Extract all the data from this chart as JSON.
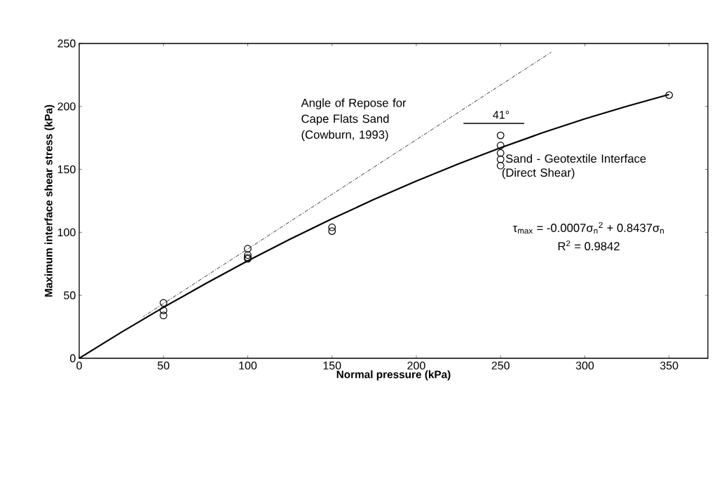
{
  "chart_data": {
    "type": "scatter",
    "xlabel": "Normal pressure (kPa)",
    "ylabel": "Maximum interface shear stress (kPa)",
    "xlim": [
      0,
      373
    ],
    "ylim": [
      0,
      250
    ],
    "xticks": [
      0,
      50,
      100,
      150,
      200,
      250,
      300,
      350
    ],
    "yticks": [
      0,
      50,
      100,
      150,
      200,
      250
    ],
    "grid": false,
    "legend": false,
    "series": [
      {
        "name": "Sand - Geotextile Interface (Direct Shear)",
        "type": "scatter",
        "marker": "circle",
        "color": "#000000",
        "x": [
          50,
          50,
          50,
          100,
          100,
          100,
          100,
          150,
          150,
          250,
          250,
          250,
          250,
          250,
          350
        ],
        "values": [
          44,
          38,
          34,
          87,
          82,
          80,
          79,
          104,
          101,
          177,
          169,
          163,
          158,
          153,
          209
        ]
      },
      {
        "type": "line",
        "marker": "none",
        "line_style": "solid",
        "color": "#000000",
        "x": [
          0,
          25,
          50,
          75,
          100,
          125,
          150,
          175,
          200,
          225,
          250,
          275,
          300,
          325,
          350
        ],
        "values": [
          0,
          20.7,
          40.4,
          59.3,
          77.4,
          94.5,
          110.8,
          126.2,
          140.7,
          154.4,
          167.2,
          179.1,
          190.1,
          200.2,
          209.5
        ]
      },
      {
        "type": "line",
        "marker": "none",
        "line_style": "solid",
        "color": "#000000",
        "x": [
          228,
          264
        ],
        "values": [
          186.5,
          186.5
        ]
      },
      {
        "name": "Angle of Repose for Cape Flats Sand (Cowburn, 1993)",
        "type": "line",
        "marker": "none",
        "line_style": "dashed",
        "color": "#000000",
        "x": [
          38,
          280
        ],
        "values": [
          33,
          243
        ]
      }
    ],
    "annotations": [
      "41°",
      "τ$_{max}$ = -0.0007σ$_{n}$$^{2}$ + 0.8437σ$_{n}$",
      "R$^{2}$ = 0.9842"
    ]
  }
}
